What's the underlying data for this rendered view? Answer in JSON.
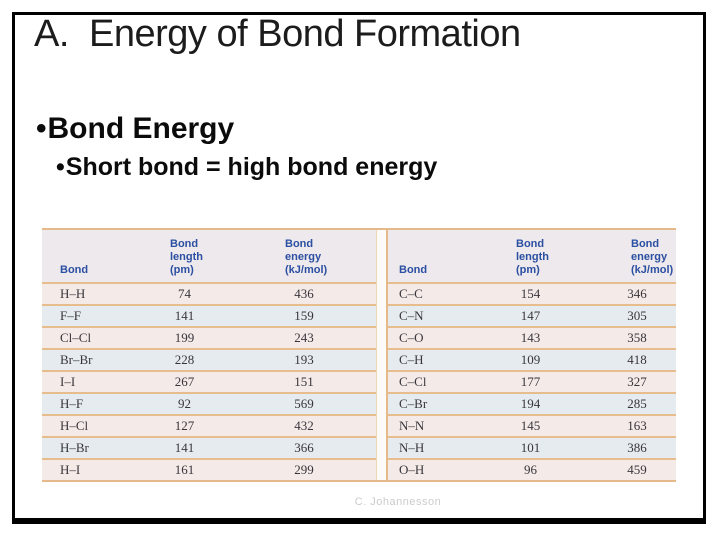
{
  "slide": {
    "title": "A.  Energy of Bond Formation",
    "bullet1": {
      "bullet": "•",
      "label": "Bond Energy"
    },
    "bullet2": {
      "bullet": "•",
      "label": "Short bond = high bond energy"
    },
    "footer": "C. Johannesson"
  },
  "table": {
    "headers": {
      "bond": "Bond",
      "length": "Bond\nlength\n(pm)",
      "energy": "Bond\nenergy\n(kJ/mol)"
    },
    "left_rows": [
      {
        "bond": "H–H",
        "length": 74,
        "energy": 436
      },
      {
        "bond": "F–F",
        "length": 141,
        "energy": 159
      },
      {
        "bond": "Cl–Cl",
        "length": 199,
        "energy": 243
      },
      {
        "bond": "Br–Br",
        "length": 228,
        "energy": 193
      },
      {
        "bond": "I–I",
        "length": 267,
        "energy": 151
      },
      {
        "bond": "H–F",
        "length": 92,
        "energy": 569
      },
      {
        "bond": "H–Cl",
        "length": 127,
        "energy": 432
      },
      {
        "bond": "H–Br",
        "length": 141,
        "energy": 366
      },
      {
        "bond": "H–I",
        "length": 161,
        "energy": 299
      }
    ],
    "right_rows": [
      {
        "bond": "C–C",
        "length": 154,
        "energy": 346
      },
      {
        "bond": "C–N",
        "length": 147,
        "energy": 305
      },
      {
        "bond": "C–O",
        "length": 143,
        "energy": 358
      },
      {
        "bond": "C–H",
        "length": 109,
        "energy": 418
      },
      {
        "bond": "C–Cl",
        "length": 177,
        "energy": 327
      },
      {
        "bond": "C–Br",
        "length": 194,
        "energy": 285
      },
      {
        "bond": "N–N",
        "length": 145,
        "energy": 163
      },
      {
        "bond": "N–H",
        "length": 101,
        "energy": 386
      },
      {
        "bond": "O–H",
        "length": 96,
        "energy": 459
      }
    ]
  },
  "colors": {
    "slide_border": "#000000",
    "header_text_blue": "#2b4fa2",
    "table_rule_tan": "#e7bd8d",
    "row_pink": "#f4eae7",
    "row_blue": "#e5ebee",
    "footer_gray": "#cccccc"
  }
}
